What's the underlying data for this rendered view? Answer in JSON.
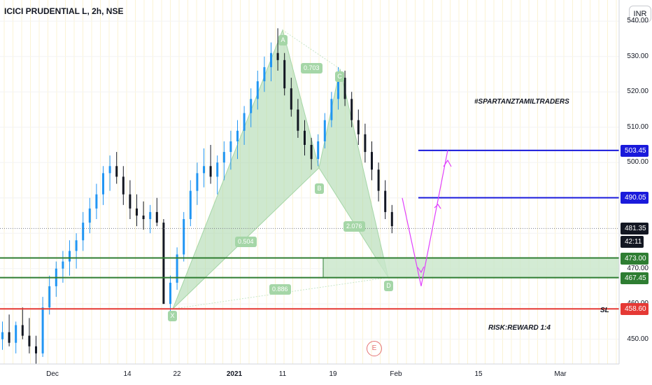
{
  "header": {
    "title": "ICICI PRUDENTIAL L, 2h, NSE",
    "currency": "INR"
  },
  "annotations": {
    "hashtag": "#SPARTANZTAMILTRADERS",
    "sl": "SL",
    "risk_reward": "RISK:REWARD 1:4"
  },
  "pattern": {
    "points": [
      "X",
      "A",
      "B",
      "C",
      "D"
    ],
    "ratios": [
      "0.703",
      "0.504",
      "2.076",
      "0.886"
    ],
    "color": "#a5d6a7"
  },
  "earnings_badge": "E",
  "chart_data": {
    "type": "candlestick",
    "title": "ICICI PRUDENTIAL L, 2h, NSE",
    "ylim": [
      443,
      546
    ],
    "y_ticks": [
      450,
      460,
      470,
      480,
      490,
      500,
      510,
      520,
      530,
      540
    ],
    "y_tick_labels": [
      "450.00",
      "460.00",
      "470.00",
      "480.00",
      "490.00",
      "500.00",
      "510.00",
      "520.00",
      "530.00",
      "540.00"
    ],
    "x_tick_labels": [
      "Dec",
      "14",
      "22",
      "2021",
      "11",
      "19",
      "Feb",
      "15",
      "Mar"
    ],
    "last_price": 481.35,
    "countdown": "42:11",
    "levels": [
      {
        "value": 503.45,
        "label": "503.45",
        "color": "#1a1adb"
      },
      {
        "value": 490.05,
        "label": "490.05",
        "color": "#1a1adb"
      },
      {
        "value": 473.0,
        "label": "473.00",
        "color": "#2e7d32"
      },
      {
        "value": 467.45,
        "label": "467.45",
        "color": "#2e7d32"
      },
      {
        "value": 458.6,
        "label": "458.60",
        "color": "#e53935"
      }
    ],
    "harmonic_pattern": {
      "X": 458.6,
      "A": 537.5,
      "B": 498.5,
      "C": 526.5,
      "D": 467.5
    },
    "price_path": [
      [
        450,
        455,
        447,
        452
      ],
      [
        452,
        457,
        448,
        449
      ],
      [
        449,
        455,
        446,
        454
      ],
      [
        454,
        459,
        450,
        451
      ],
      [
        451,
        456,
        446,
        448
      ],
      [
        448,
        451,
        443,
        446
      ],
      [
        446,
        462,
        445,
        459
      ],
      [
        459,
        468,
        457,
        465
      ],
      [
        465,
        472,
        462,
        470
      ],
      [
        470,
        475,
        466,
        472
      ],
      [
        472,
        478,
        468,
        475
      ],
      [
        475,
        480,
        470,
        478
      ],
      [
        478,
        486,
        475,
        483
      ],
      [
        483,
        490,
        480,
        487
      ],
      [
        487,
        494,
        484,
        491
      ],
      [
        491,
        499,
        488,
        497
      ],
      [
        497,
        502,
        492,
        499
      ],
      [
        499,
        503,
        494,
        496
      ],
      [
        496,
        499,
        488,
        491
      ],
      [
        491,
        495,
        484,
        487
      ],
      [
        487,
        491,
        482,
        485
      ],
      [
        485,
        489,
        481,
        484
      ],
      [
        484,
        488,
        480,
        486
      ],
      [
        486,
        490,
        482,
        483
      ],
      [
        483,
        484,
        462,
        460
      ],
      [
        460,
        468,
        458,
        466
      ],
      [
        466,
        476,
        464,
        474
      ],
      [
        474,
        486,
        472,
        484
      ],
      [
        484,
        495,
        482,
        492
      ],
      [
        492,
        500,
        488,
        497
      ],
      [
        497,
        504,
        493,
        499
      ],
      [
        499,
        505,
        494,
        496
      ],
      [
        496,
        502,
        491,
        500
      ],
      [
        500,
        506,
        495,
        503
      ],
      [
        503,
        509,
        498,
        506
      ],
      [
        506,
        512,
        501,
        509
      ],
      [
        509,
        516,
        505,
        514
      ],
      [
        514,
        521,
        510,
        518
      ],
      [
        518,
        526,
        515,
        523
      ],
      [
        523,
        530,
        520,
        527
      ],
      [
        527,
        534,
        523,
        531
      ],
      [
        531,
        538,
        526,
        529
      ],
      [
        529,
        531,
        519,
        521
      ],
      [
        521,
        524,
        513,
        515
      ],
      [
        515,
        518,
        507,
        509
      ],
      [
        509,
        512,
        502,
        505
      ],
      [
        505,
        507,
        498,
        501
      ],
      [
        501,
        508,
        499,
        506
      ],
      [
        506,
        514,
        504,
        512
      ],
      [
        512,
        520,
        510,
        518
      ],
      [
        518,
        527,
        515,
        524
      ],
      [
        524,
        526,
        516,
        518
      ],
      [
        518,
        520,
        510,
        512
      ],
      [
        512,
        515,
        505,
        508
      ],
      [
        508,
        511,
        500,
        503
      ],
      [
        503,
        506,
        495,
        498
      ],
      [
        498,
        500,
        489,
        492
      ],
      [
        492,
        495,
        484,
        486
      ],
      [
        486,
        488,
        480,
        482
      ]
    ],
    "projection": {
      "color": "#e040fb",
      "path": [
        490,
        469,
        503.5
      ]
    }
  }
}
